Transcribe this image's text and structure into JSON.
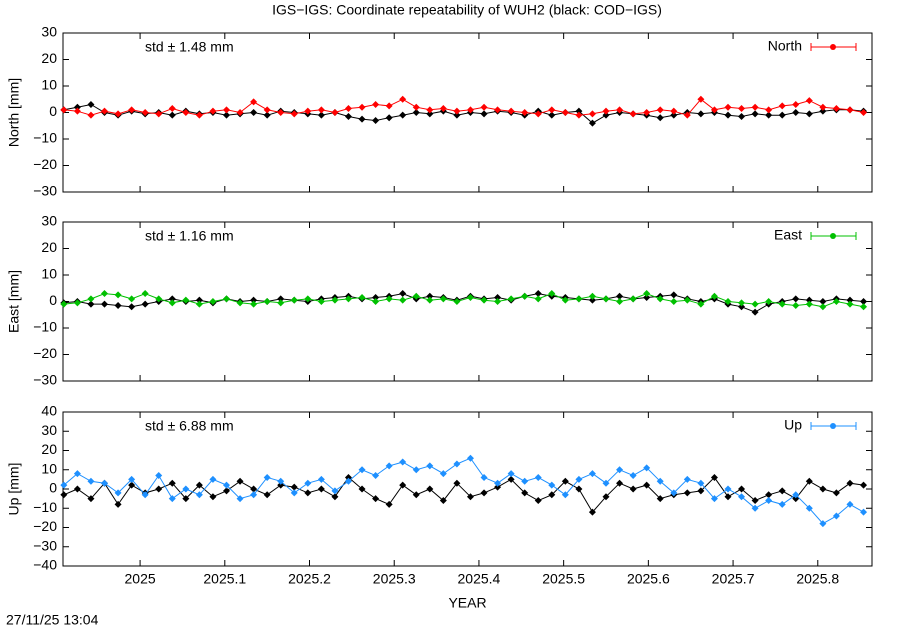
{
  "title": "IGS−IGS: Coordinate repeatability of WUH2 (black: COD−IGS)",
  "footer": "27/11/25 13:04",
  "chart_data": [
    {
      "type": "line",
      "ylabel": "North [mm]",
      "annotation": "std ± 1.48 mm",
      "legend": "top-right",
      "xlim": [
        2024.909,
        2025.864
      ],
      "ylim": [
        -30,
        30
      ],
      "yticks": [
        {
          "value": -30,
          "label": "−30"
        },
        {
          "value": -20,
          "label": "−20"
        },
        {
          "value": -10,
          "label": "−10"
        },
        0,
        10,
        20,
        30
      ],
      "x": [
        2024.91,
        2024.926,
        2024.942,
        2024.958,
        2024.974,
        2024.99,
        2025.006,
        2025.022,
        2025.038,
        2025.054,
        2025.07,
        2025.086,
        2025.102,
        2025.118,
        2025.134,
        2025.15,
        2025.166,
        2025.182,
        2025.198,
        2025.214,
        2025.23,
        2025.246,
        2025.262,
        2025.278,
        2025.294,
        2025.31,
        2025.326,
        2025.342,
        2025.358,
        2025.374,
        2025.39,
        2025.406,
        2025.422,
        2025.438,
        2025.454,
        2025.47,
        2025.486,
        2025.502,
        2025.518,
        2025.534,
        2025.55,
        2025.566,
        2025.582,
        2025.598,
        2025.614,
        2025.63,
        2025.646,
        2025.662,
        2025.678,
        2025.694,
        2025.71,
        2025.726,
        2025.742,
        2025.758,
        2025.774,
        2025.79,
        2025.806,
        2025.822,
        2025.838,
        2025.854
      ],
      "series": [
        {
          "name": "North",
          "color": "#ff0000",
          "values": [
            1,
            0.5,
            -1,
            0.5,
            -0.5,
            1,
            0,
            -0.5,
            1.5,
            0,
            -1,
            0.5,
            1,
            0,
            4,
            1,
            0,
            -0.5,
            0.5,
            1,
            0,
            1.5,
            2,
            3,
            2.5,
            5,
            2,
            1,
            1.5,
            0.5,
            1,
            2,
            1,
            0.5,
            0,
            -0.5,
            1,
            0,
            -1,
            -0.5,
            0.5,
            1,
            -0.5,
            0,
            1,
            0.5,
            -1,
            5,
            1,
            2,
            1.5,
            2,
            1,
            2.5,
            3,
            4.5,
            2,
            1.5,
            1,
            0
          ]
        },
        {
          "color": "#000000",
          "values": [
            1,
            2,
            3,
            0,
            -1,
            0.5,
            -0.5,
            0,
            -1,
            0.5,
            -0.5,
            0,
            -1,
            -0.5,
            0,
            -1,
            0.5,
            0,
            -0.5,
            -1,
            0,
            -1.5,
            -2.5,
            -3,
            -2,
            -1,
            0,
            -0.5,
            0.5,
            -1,
            0,
            -0.5,
            0.5,
            0,
            -1,
            0.5,
            -1,
            0,
            0.5,
            -4,
            -1,
            0,
            -0.5,
            -1,
            -2,
            -1,
            0,
            -0.5,
            0,
            -1,
            -1.5,
            -0.5,
            -1,
            -1,
            0,
            -0.5,
            0.5,
            1,
            1,
            0.5
          ]
        }
      ]
    },
    {
      "type": "line",
      "ylabel": "East [mm]",
      "annotation": "std ± 1.16 mm",
      "legend": "top-right",
      "xlim": [
        2024.909,
        2025.864
      ],
      "ylim": [
        -30,
        30
      ],
      "yticks": [
        {
          "value": -30,
          "label": "−30"
        },
        {
          "value": -20,
          "label": "−20"
        },
        {
          "value": -10,
          "label": "−10"
        },
        0,
        10,
        20,
        30
      ],
      "x": [
        2024.91,
        2024.926,
        2024.942,
        2024.958,
        2024.974,
        2024.99,
        2025.006,
        2025.022,
        2025.038,
        2025.054,
        2025.07,
        2025.086,
        2025.102,
        2025.118,
        2025.134,
        2025.15,
        2025.166,
        2025.182,
        2025.198,
        2025.214,
        2025.23,
        2025.246,
        2025.262,
        2025.278,
        2025.294,
        2025.31,
        2025.326,
        2025.342,
        2025.358,
        2025.374,
        2025.39,
        2025.406,
        2025.422,
        2025.438,
        2025.454,
        2025.47,
        2025.486,
        2025.502,
        2025.518,
        2025.534,
        2025.55,
        2025.566,
        2025.582,
        2025.598,
        2025.614,
        2025.63,
        2025.646,
        2025.662,
        2025.678,
        2025.694,
        2025.71,
        2025.726,
        2025.742,
        2025.758,
        2025.774,
        2025.79,
        2025.806,
        2025.822,
        2025.838,
        2025.854
      ],
      "series": [
        {
          "name": "East",
          "color": "#00c000",
          "values": [
            -1,
            -0.5,
            1,
            3,
            2.5,
            1,
            3,
            1,
            -0.5,
            0.5,
            -1,
            0,
            1,
            -0.5,
            -1,
            0,
            -0.5,
            0.5,
            1,
            0,
            0.5,
            1,
            1.5,
            0,
            1,
            0.5,
            2,
            0.5,
            1,
            0,
            1.5,
            0.5,
            0,
            1,
            2,
            1,
            3,
            0.5,
            1,
            2,
            1,
            0,
            1,
            3,
            1,
            0,
            0.5,
            -1,
            2,
            0,
            -0.5,
            -1,
            0,
            -1,
            -1.5,
            -1,
            -2,
            0,
            -1,
            -2
          ]
        },
        {
          "color": "#000000",
          "values": [
            -0.5,
            0,
            -1,
            -1,
            -1.5,
            -2,
            -1,
            0,
            1,
            0,
            0.5,
            -0.5,
            1,
            0,
            0.5,
            0,
            1,
            0.5,
            0,
            1,
            1.5,
            2,
            1,
            1.5,
            2,
            3,
            1,
            2,
            1.5,
            0.5,
            2,
            1,
            1.5,
            0.5,
            2,
            3,
            2,
            1.5,
            1,
            0.5,
            1,
            2,
            1,
            1.5,
            2,
            2.5,
            1,
            0,
            1,
            -1,
            -2,
            -4,
            -1,
            0,
            1,
            0.5,
            0,
            1,
            0.5,
            0
          ]
        }
      ]
    },
    {
      "type": "line",
      "ylabel": "Up [mm]",
      "xlabel": "YEAR",
      "annotation": "std ± 6.88 mm",
      "legend": "top-right",
      "xlim": [
        2024.909,
        2025.864
      ],
      "ylim": [
        -40,
        40
      ],
      "xticks": [
        2025,
        2025.1,
        2025.2,
        2025.3,
        2025.4,
        2025.5,
        2025.6,
        2025.7,
        2025.8
      ],
      "yticks": [
        {
          "value": -40,
          "label": "−40"
        },
        {
          "value": -30,
          "label": "−30"
        },
        {
          "value": -20,
          "label": "−20"
        },
        {
          "value": -10,
          "label": "−10"
        },
        0,
        10,
        20,
        30,
        40
      ],
      "x": [
        2024.91,
        2024.926,
        2024.942,
        2024.958,
        2024.974,
        2024.99,
        2025.006,
        2025.022,
        2025.038,
        2025.054,
        2025.07,
        2025.086,
        2025.102,
        2025.118,
        2025.134,
        2025.15,
        2025.166,
        2025.182,
        2025.198,
        2025.214,
        2025.23,
        2025.246,
        2025.262,
        2025.278,
        2025.294,
        2025.31,
        2025.326,
        2025.342,
        2025.358,
        2025.374,
        2025.39,
        2025.406,
        2025.422,
        2025.438,
        2025.454,
        2025.47,
        2025.486,
        2025.502,
        2025.518,
        2025.534,
        2025.55,
        2025.566,
        2025.582,
        2025.598,
        2025.614,
        2025.63,
        2025.646,
        2025.662,
        2025.678,
        2025.694,
        2025.71,
        2025.726,
        2025.742,
        2025.758,
        2025.774,
        2025.79,
        2025.806,
        2025.822,
        2025.838,
        2025.854
      ],
      "series": [
        {
          "name": "Up",
          "color": "#1e90ff",
          "values": [
            2,
            8,
            4,
            3,
            -2,
            5,
            -3,
            7,
            -5,
            0,
            -3,
            5,
            2,
            -5,
            -3,
            6,
            4,
            -2,
            3,
            5,
            -1,
            4,
            10,
            7,
            12,
            14,
            10,
            12,
            8,
            13,
            16,
            6,
            3,
            8,
            4,
            6,
            2,
            -3,
            5,
            8,
            3,
            10,
            7,
            11,
            4,
            -2,
            5,
            3,
            -5,
            0,
            -4,
            -10,
            -6,
            -8,
            -3,
            -10,
            -18,
            -14,
            -8,
            -12
          ]
        },
        {
          "color": "#000000",
          "values": [
            -3,
            0,
            -5,
            3,
            -8,
            2,
            -2,
            0,
            3,
            -5,
            2,
            -4,
            -1,
            4,
            0,
            -3,
            2,
            1,
            -2,
            0,
            -4,
            6,
            0,
            -5,
            -8,
            2,
            -3,
            0,
            -6,
            3,
            -4,
            -2,
            1,
            5,
            -2,
            -6,
            -3,
            4,
            0,
            -12,
            -4,
            3,
            0,
            2,
            -5,
            -3,
            -2,
            -1,
            6,
            -4,
            0,
            -6,
            -3,
            -1,
            -5,
            4,
            0,
            -2,
            3,
            2
          ]
        }
      ]
    }
  ]
}
